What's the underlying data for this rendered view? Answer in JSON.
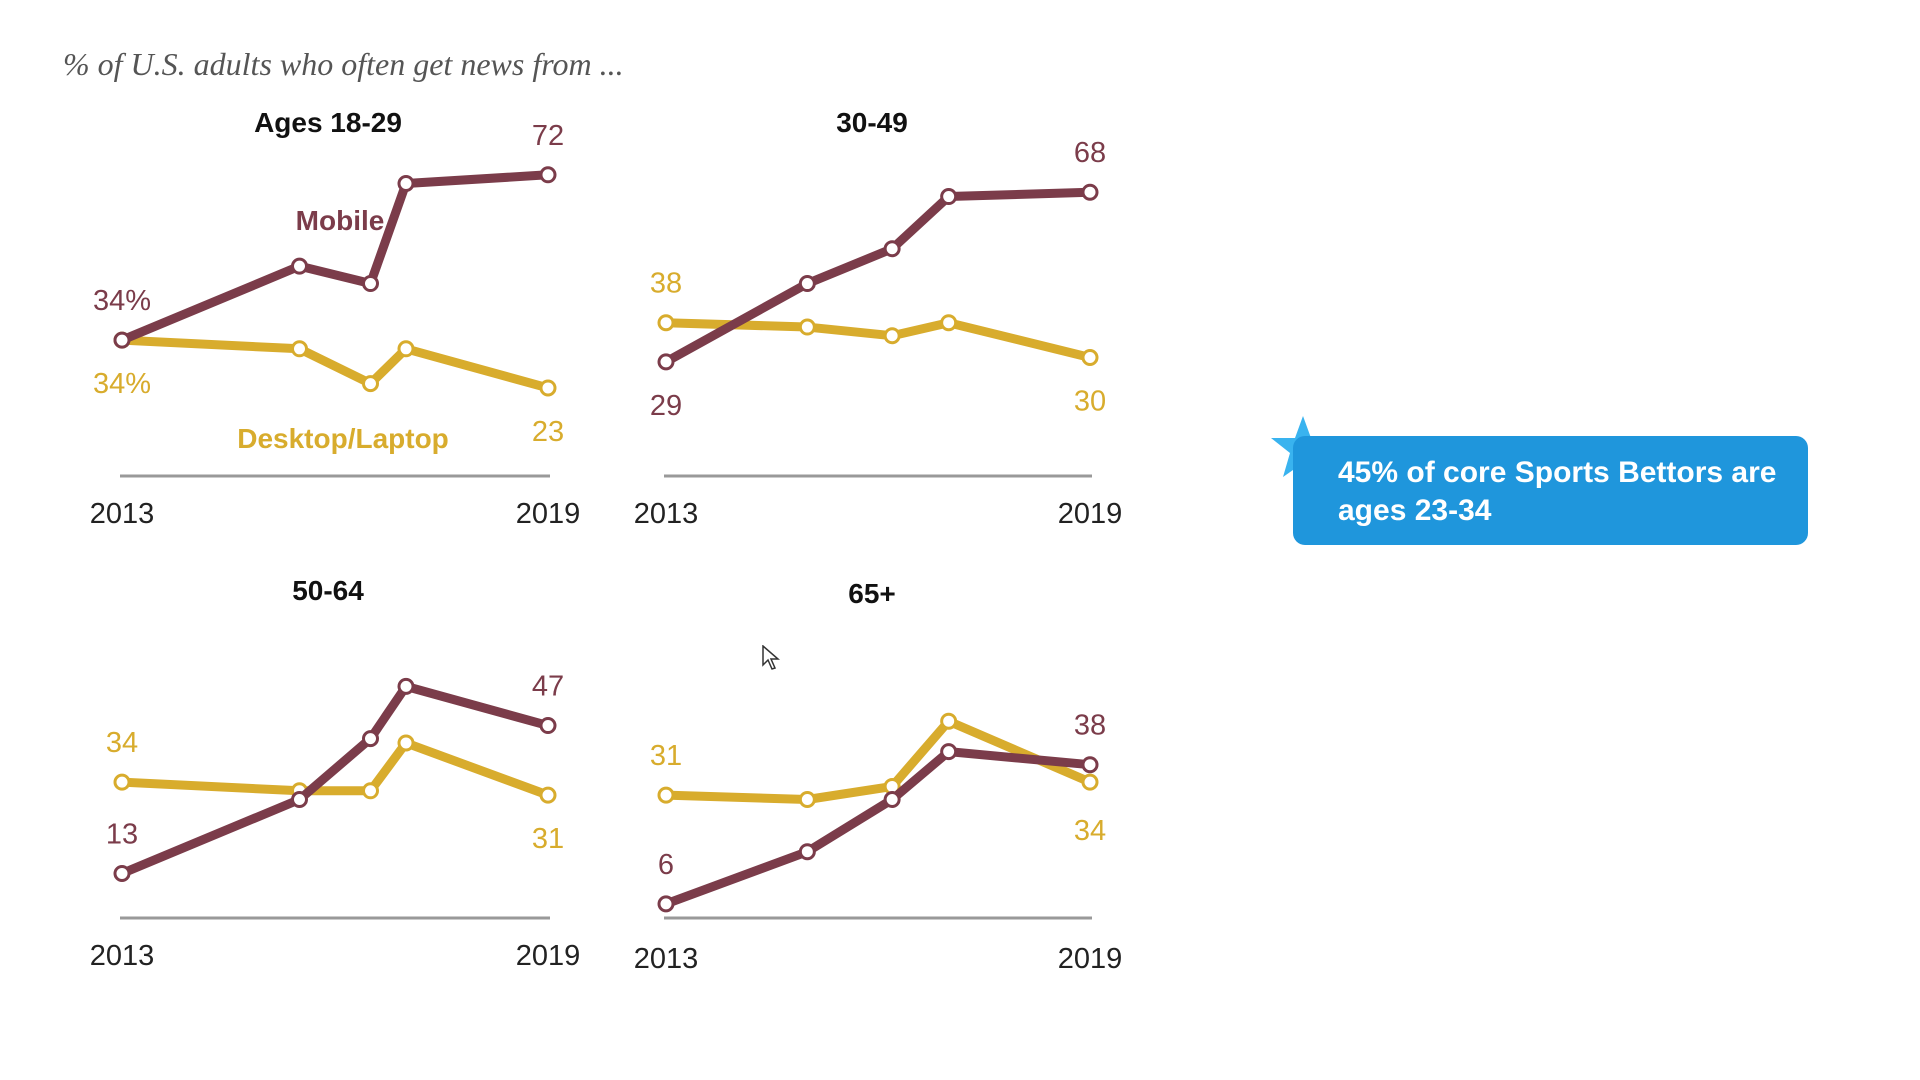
{
  "subtitle": "% of U.S. adults who often get news from ...",
  "colors": {
    "mobile": "#7b3c4a",
    "desktop": "#d8ac2d",
    "axis": "#999999",
    "callout": "#1f96dc",
    "star": "#39b3ef"
  },
  "callout": {
    "text": "45%  of core Sports Bettors are ages 23-34"
  },
  "chart_data": [
    {
      "type": "line",
      "title": "Ages 18-29",
      "x": [
        2013,
        2015.5,
        2016.5,
        2017,
        2019
      ],
      "xticks": [
        "2013",
        "2019"
      ],
      "ylim": [
        0,
        80
      ],
      "series": [
        {
          "name": "Mobile",
          "values": [
            34,
            51,
            47,
            70,
            72
          ],
          "start_label": "34%",
          "end_label": "72"
        },
        {
          "name": "Desktop/Laptop",
          "values": [
            34,
            32,
            24,
            32,
            23
          ],
          "start_label": "34%",
          "end_label": "23"
        }
      ]
    },
    {
      "type": "line",
      "title": "30-49",
      "x": [
        2013,
        2015,
        2016.2,
        2017,
        2019
      ],
      "xticks": [
        "2013",
        "2019"
      ],
      "ylim": [
        0,
        80
      ],
      "series": [
        {
          "name": "Mobile",
          "values": [
            29,
            47,
            55,
            67,
            68
          ],
          "start_label": "29",
          "end_label": "68"
        },
        {
          "name": "Desktop/Laptop",
          "values": [
            38,
            37,
            35,
            38,
            30
          ],
          "start_label": "38",
          "end_label": "30"
        }
      ]
    },
    {
      "type": "line",
      "title": "50-64",
      "x": [
        2013,
        2015.5,
        2016.5,
        2017,
        2019
      ],
      "xticks": [
        "2013",
        "2019"
      ],
      "ylim": [
        0,
        80
      ],
      "series": [
        {
          "name": "Mobile",
          "values": [
            13,
            30,
            44,
            56,
            47
          ],
          "start_label": "13",
          "end_label": "47"
        },
        {
          "name": "Desktop/Laptop",
          "values": [
            34,
            32,
            32,
            43,
            31
          ],
          "start_label": "34",
          "end_label": "31"
        }
      ]
    },
    {
      "type": "line",
      "title": "65+",
      "x": [
        2013,
        2015,
        2016.2,
        2017,
        2019
      ],
      "xticks": [
        "2013",
        "2019"
      ],
      "ylim": [
        0,
        80
      ],
      "series": [
        {
          "name": "Mobile",
          "values": [
            6,
            18,
            30,
            41,
            38
          ],
          "start_label": "6",
          "end_label": "38"
        },
        {
          "name": "Desktop/Laptop",
          "values": [
            31,
            30,
            33,
            48,
            34
          ],
          "start_label": "31",
          "end_label": "34"
        }
      ]
    }
  ]
}
